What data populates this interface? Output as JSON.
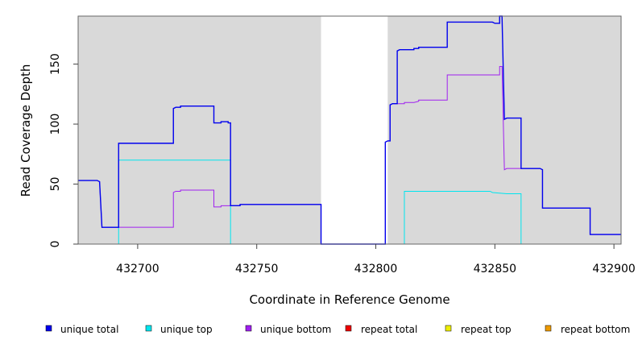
{
  "chart_data": {
    "type": "line",
    "step": true,
    "xlabel": "Coordinate in Reference Genome",
    "ylabel": "Read Coverage Depth",
    "xlim": [
      432675,
      432903
    ],
    "ylim": [
      0,
      190
    ],
    "x_ticks": [
      432700,
      432750,
      432800,
      432850,
      432900
    ],
    "x_tick_labels": [
      "432700",
      "432750",
      "432800",
      "432850",
      "432900"
    ],
    "y_ticks": [
      0,
      50,
      100,
      150
    ],
    "y_tick_labels": [
      "0",
      "50",
      "100",
      "150"
    ],
    "panel_color": "#d9d9d9",
    "gaps": [
      [
        432777,
        432805
      ]
    ],
    "legend_position": "bottom",
    "series": [
      {
        "name": "unique total",
        "color": "#0000ee",
        "points": [
          [
            432675,
            53
          ],
          [
            432683,
            53
          ],
          [
            432684,
            52
          ],
          [
            432685,
            14
          ],
          [
            432692,
            14
          ],
          [
            432692,
            84
          ],
          [
            432715,
            84
          ],
          [
            432715,
            113
          ],
          [
            432716,
            114
          ],
          [
            432718,
            114
          ],
          [
            432718,
            115
          ],
          [
            432732,
            115
          ],
          [
            432732,
            101
          ],
          [
            432735,
            101
          ],
          [
            432735,
            102
          ],
          [
            432738,
            102
          ],
          [
            432738,
            101
          ],
          [
            432739,
            101
          ],
          [
            432739,
            32
          ],
          [
            432743,
            32
          ],
          [
            432743,
            33
          ],
          [
            432777,
            33
          ],
          [
            432777,
            0
          ],
          [
            432804,
            0
          ],
          [
            432804,
            85
          ],
          [
            432805,
            86
          ],
          [
            432806,
            86
          ],
          [
            432806,
            116
          ],
          [
            432807,
            117
          ],
          [
            432809,
            117
          ],
          [
            432809,
            161
          ],
          [
            432810,
            162
          ],
          [
            432816,
            162
          ],
          [
            432816,
            163
          ],
          [
            432818,
            163
          ],
          [
            432818,
            164
          ],
          [
            432830,
            164
          ],
          [
            432830,
            185
          ],
          [
            432849,
            185
          ],
          [
            432850,
            184
          ],
          [
            432852,
            184
          ],
          [
            432852,
            190
          ],
          [
            432853,
            190
          ],
          [
            432854,
            104
          ],
          [
            432855,
            105
          ],
          [
            432861,
            105
          ],
          [
            432861,
            63
          ],
          [
            432869,
            63
          ],
          [
            432870,
            62
          ],
          [
            432870,
            30
          ],
          [
            432890,
            30
          ],
          [
            432890,
            8
          ],
          [
            432903,
            8
          ]
        ]
      },
      {
        "name": "unique top",
        "color": "#00e5ee",
        "points": [
          [
            432675,
            0
          ],
          [
            432692,
            0
          ],
          [
            432692,
            70
          ],
          [
            432739,
            70
          ],
          [
            432739,
            0
          ],
          [
            432777,
            0
          ],
          [
            432805,
            0
          ],
          [
            432812,
            0
          ],
          [
            432812,
            44
          ],
          [
            432848,
            44
          ],
          [
            432849,
            43
          ],
          [
            432855,
            42
          ],
          [
            432861,
            42
          ],
          [
            432861,
            0
          ],
          [
            432903,
            0
          ]
        ]
      },
      {
        "name": "unique bottom",
        "color": "#a020f0",
        "points": [
          [
            432675,
            53
          ],
          [
            432683,
            53
          ],
          [
            432684,
            52
          ],
          [
            432685,
            14
          ],
          [
            432715,
            14
          ],
          [
            432715,
            43
          ],
          [
            432716,
            44
          ],
          [
            432718,
            44
          ],
          [
            432718,
            45
          ],
          [
            432732,
            45
          ],
          [
            432732,
            31
          ],
          [
            432735,
            31
          ],
          [
            432735,
            32
          ],
          [
            432739,
            32
          ],
          [
            432743,
            32
          ],
          [
            432743,
            33
          ],
          [
            432777,
            33
          ],
          [
            432777,
            0
          ],
          [
            432804,
            0
          ],
          [
            432804,
            85
          ],
          [
            432805,
            86
          ],
          [
            432806,
            86
          ],
          [
            432806,
            116
          ],
          [
            432807,
            117
          ],
          [
            432809,
            117
          ],
          [
            432809,
            117
          ],
          [
            432812,
            117
          ],
          [
            432812,
            118
          ],
          [
            432816,
            118
          ],
          [
            432818,
            119
          ],
          [
            432818,
            120
          ],
          [
            432830,
            120
          ],
          [
            432830,
            141
          ],
          [
            432852,
            141
          ],
          [
            432852,
            148
          ],
          [
            432853,
            148
          ],
          [
            432854,
            62
          ],
          [
            432855,
            63
          ],
          [
            432861,
            63
          ],
          [
            432869,
            63
          ],
          [
            432870,
            62
          ],
          [
            432870,
            30
          ],
          [
            432890,
            30
          ],
          [
            432890,
            8
          ],
          [
            432903,
            8
          ]
        ]
      },
      {
        "name": "repeat total",
        "color": "#ee0000",
        "points": [
          [
            432675,
            0
          ],
          [
            432777,
            0
          ],
          [
            432805,
            0
          ],
          [
            432903,
            0
          ]
        ]
      },
      {
        "name": "repeat top",
        "color": "#eeee00",
        "points": [
          [
            432675,
            0
          ],
          [
            432777,
            0
          ],
          [
            432805,
            0
          ],
          [
            432903,
            0
          ]
        ]
      },
      {
        "name": "repeat bottom",
        "color": "#ee9a00",
        "points": [
          [
            432675,
            0
          ],
          [
            432777,
            0
          ],
          [
            432805,
            0
          ],
          [
            432903,
            0
          ]
        ]
      }
    ]
  }
}
